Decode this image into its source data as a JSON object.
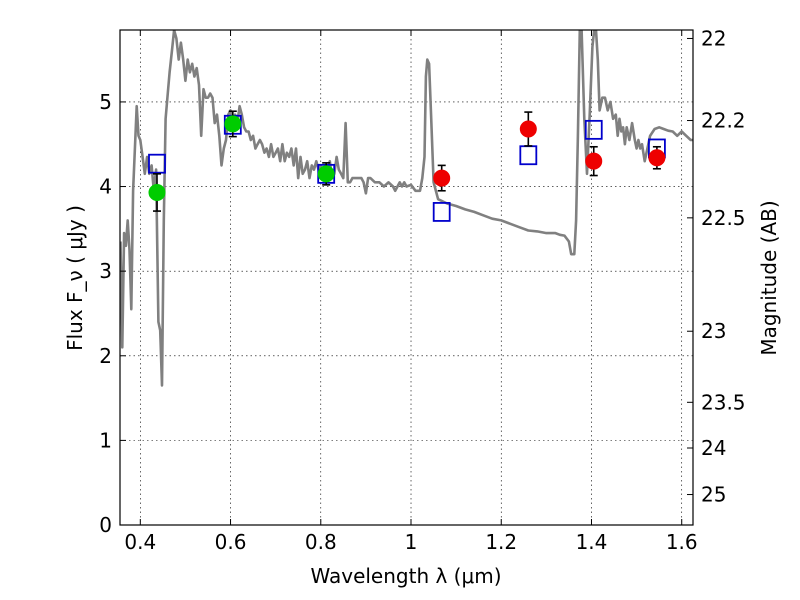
{
  "chart_data": {
    "type": "scatter",
    "xlabel": "Wavelength  λ (μm)",
    "ylabel": "Flux  F_ν  ( μJy )",
    "ylabel_right": "Magnitude (AB)",
    "xlim": [
      0.355,
      1.625
    ],
    "ylim": [
      0,
      5.85
    ],
    "grid": true,
    "x_ticks": [
      0.4,
      0.6,
      0.8,
      1.0,
      1.2,
      1.4,
      1.6
    ],
    "x_tick_labels": [
      "0.4",
      "0.6",
      "0.8",
      "1",
      "1.2",
      "1.4",
      "1.6"
    ],
    "y_ticks": [
      0,
      1,
      2,
      3,
      4,
      5
    ],
    "y_tick_labels": [
      "0",
      "1",
      "2",
      "3",
      "4",
      "5"
    ],
    "mag_ticks": [
      22,
      22.2,
      22.5,
      23,
      23.5,
      24,
      25
    ],
    "mag_tick_labels": [
      "22",
      "22.2",
      "22.5",
      "23",
      "23.5",
      "24",
      "25"
    ],
    "mag_tick_flux": [
      5.75,
      4.78,
      3.63,
      2.29,
      1.45,
      0.91,
      0.36
    ],
    "colors": {
      "template": "#808080",
      "model": "#0000cc",
      "green": "#00cc00",
      "red": "#ee0000"
    },
    "series": [
      {
        "style": "line",
        "points": [
          [
            0.356,
            3.35
          ],
          [
            0.36,
            2.1
          ],
          [
            0.364,
            3.45
          ],
          [
            0.368,
            3.3
          ],
          [
            0.372,
            3.6
          ],
          [
            0.376,
            3.25
          ],
          [
            0.38,
            2.55
          ],
          [
            0.384,
            3.95
          ],
          [
            0.388,
            4.45
          ],
          [
            0.392,
            4.95
          ],
          [
            0.396,
            4.6
          ],
          [
            0.4,
            4.55
          ],
          [
            0.405,
            4.35
          ],
          [
            0.41,
            4.15
          ],
          [
            0.415,
            4.35
          ],
          [
            0.42,
            4.15
          ],
          [
            0.425,
            4.25
          ],
          [
            0.43,
            3.95
          ],
          [
            0.435,
            4.2
          ],
          [
            0.44,
            2.4
          ],
          [
            0.444,
            2.3
          ],
          [
            0.448,
            1.65
          ],
          [
            0.452,
            3.6
          ],
          [
            0.456,
            4.8
          ],
          [
            0.46,
            5.05
          ],
          [
            0.465,
            5.35
          ],
          [
            0.47,
            5.6
          ],
          [
            0.475,
            5.85
          ],
          [
            0.48,
            5.75
          ],
          [
            0.485,
            5.5
          ],
          [
            0.49,
            5.7
          ],
          [
            0.495,
            5.5
          ],
          [
            0.5,
            5.25
          ],
          [
            0.505,
            5.5
          ],
          [
            0.51,
            5.35
          ],
          [
            0.515,
            5.45
          ],
          [
            0.52,
            5.3
          ],
          [
            0.525,
            5.4
          ],
          [
            0.53,
            5.2
          ],
          [
            0.535,
            4.6
          ],
          [
            0.54,
            5.15
          ],
          [
            0.545,
            5.05
          ],
          [
            0.55,
            5.05
          ],
          [
            0.555,
            5.1
          ],
          [
            0.56,
            5.05
          ],
          [
            0.565,
            4.75
          ],
          [
            0.57,
            4.85
          ],
          [
            0.575,
            4.6
          ],
          [
            0.58,
            4.25
          ],
          [
            0.585,
            4.45
          ],
          [
            0.59,
            4.55
          ],
          [
            0.595,
            4.85
          ],
          [
            0.6,
            4.9
          ],
          [
            0.605,
            4.75
          ],
          [
            0.61,
            4.85
          ],
          [
            0.615,
            4.75
          ],
          [
            0.62,
            4.95
          ],
          [
            0.625,
            4.85
          ],
          [
            0.63,
            4.7
          ],
          [
            0.635,
            4.65
          ],
          [
            0.64,
            4.65
          ],
          [
            0.645,
            4.55
          ],
          [
            0.65,
            4.6
          ],
          [
            0.655,
            4.45
          ],
          [
            0.66,
            4.5
          ],
          [
            0.665,
            4.55
          ],
          [
            0.67,
            4.5
          ],
          [
            0.675,
            4.4
          ],
          [
            0.68,
            4.45
          ],
          [
            0.685,
            4.35
          ],
          [
            0.69,
            4.5
          ],
          [
            0.695,
            4.35
          ],
          [
            0.7,
            4.4
          ],
          [
            0.705,
            4.45
          ],
          [
            0.71,
            4.3
          ],
          [
            0.715,
            4.5
          ],
          [
            0.72,
            4.3
          ],
          [
            0.725,
            4.4
          ],
          [
            0.73,
            4.35
          ],
          [
            0.735,
            4.45
          ],
          [
            0.74,
            4.25
          ],
          [
            0.745,
            4.45
          ],
          [
            0.75,
            4.1
          ],
          [
            0.755,
            4.35
          ],
          [
            0.76,
            4.15
          ],
          [
            0.765,
            4.2
          ],
          [
            0.77,
            4.3
          ],
          [
            0.775,
            4.1
          ],
          [
            0.78,
            4.25
          ],
          [
            0.785,
            4.2
          ],
          [
            0.79,
            4.3
          ],
          [
            0.795,
            4.2
          ],
          [
            0.8,
            4.25
          ],
          [
            0.805,
            4.15
          ],
          [
            0.81,
            4.25
          ],
          [
            0.815,
            4.2
          ],
          [
            0.82,
            4.3
          ],
          [
            0.825,
            4.1
          ],
          [
            0.83,
            4.15
          ],
          [
            0.835,
            4.35
          ],
          [
            0.84,
            4.2
          ],
          [
            0.845,
            4.15
          ],
          [
            0.85,
            4.1
          ],
          [
            0.855,
            4.75
          ],
          [
            0.86,
            4.05
          ],
          [
            0.865,
            4.05
          ],
          [
            0.87,
            4.1
          ],
          [
            0.88,
            4.1
          ],
          [
            0.89,
            4.1
          ],
          [
            0.895,
            4.05
          ],
          [
            0.9,
            3.92
          ],
          [
            0.905,
            4.1
          ],
          [
            0.91,
            4.1
          ],
          [
            0.92,
            4.05
          ],
          [
            0.93,
            4.05
          ],
          [
            0.94,
            4.0
          ],
          [
            0.95,
            4.05
          ],
          [
            0.96,
            4.0
          ],
          [
            0.965,
            3.95
          ],
          [
            0.97,
            4.0
          ],
          [
            0.975,
            4.05
          ],
          [
            0.98,
            4.0
          ],
          [
            0.985,
            4.05
          ],
          [
            0.99,
            4.0
          ],
          [
            1.0,
            4.02
          ],
          [
            1.01,
            3.95
          ],
          [
            1.02,
            3.95
          ],
          [
            1.025,
            4.1
          ],
          [
            1.03,
            4.35
          ],
          [
            1.033,
            5.3
          ],
          [
            1.036,
            5.5
          ],
          [
            1.04,
            5.45
          ],
          [
            1.044,
            4.9
          ],
          [
            1.05,
            4.05
          ],
          [
            1.06,
            3.85
          ],
          [
            1.08,
            3.8
          ],
          [
            1.1,
            3.77
          ],
          [
            1.12,
            3.73
          ],
          [
            1.14,
            3.7
          ],
          [
            1.16,
            3.66
          ],
          [
            1.18,
            3.62
          ],
          [
            1.2,
            3.6
          ],
          [
            1.22,
            3.56
          ],
          [
            1.24,
            3.52
          ],
          [
            1.26,
            3.48
          ],
          [
            1.28,
            3.47
          ],
          [
            1.3,
            3.45
          ],
          [
            1.32,
            3.45
          ],
          [
            1.33,
            3.43
          ],
          [
            1.34,
            3.42
          ],
          [
            1.35,
            3.35
          ],
          [
            1.355,
            3.2
          ],
          [
            1.362,
            3.2
          ],
          [
            1.366,
            3.6
          ],
          [
            1.37,
            4.6
          ],
          [
            1.374,
            5.85
          ],
          [
            1.378,
            5.85
          ],
          [
            1.384,
            4.8
          ],
          [
            1.39,
            4.15
          ],
          [
            1.396,
            4.85
          ],
          [
            1.402,
            5.65
          ],
          [
            1.406,
            5.85
          ],
          [
            1.41,
            5.85
          ],
          [
            1.414,
            5.5
          ],
          [
            1.418,
            4.9
          ],
          [
            1.424,
            5.05
          ],
          [
            1.43,
            5.05
          ],
          [
            1.436,
            4.9
          ],
          [
            1.442,
            5.0
          ],
          [
            1.448,
            4.8
          ],
          [
            1.454,
            4.85
          ],
          [
            1.458,
            4.6
          ],
          [
            1.462,
            4.8
          ],
          [
            1.466,
            4.65
          ],
          [
            1.47,
            4.7
          ],
          [
            1.474,
            4.5
          ],
          [
            1.478,
            4.7
          ],
          [
            1.484,
            4.55
          ],
          [
            1.49,
            4.75
          ],
          [
            1.496,
            4.55
          ],
          [
            1.5,
            4.45
          ],
          [
            1.504,
            4.55
          ],
          [
            1.508,
            4.45
          ],
          [
            1.512,
            4.5
          ],
          [
            1.518,
            4.3
          ],
          [
            1.524,
            4.45
          ],
          [
            1.53,
            4.6
          ],
          [
            1.54,
            4.68
          ],
          [
            1.55,
            4.7
          ],
          [
            1.56,
            4.68
          ],
          [
            1.57,
            4.66
          ],
          [
            1.58,
            4.65
          ],
          [
            1.59,
            4.6
          ],
          [
            1.6,
            4.65
          ],
          [
            1.61,
            4.6
          ],
          [
            1.62,
            4.55
          ],
          [
            1.625,
            4.55
          ]
        ]
      },
      {
        "style": "open-square",
        "points": [
          [
            0.437,
            4.27
          ],
          [
            0.605,
            4.73
          ],
          [
            0.812,
            4.15
          ],
          [
            1.068,
            3.7
          ],
          [
            1.26,
            4.37
          ],
          [
            1.405,
            4.67
          ],
          [
            1.545,
            4.45
          ]
        ]
      },
      {
        "style": "filled-circle",
        "color": "green",
        "points": [
          [
            0.437,
            3.93
          ],
          [
            0.605,
            4.74
          ],
          [
            0.812,
            4.15
          ]
        ],
        "errors": [
          0.22,
          0.15,
          0.13
        ]
      },
      {
        "style": "filled-circle",
        "color": "red",
        "points": [
          [
            1.068,
            4.1
          ],
          [
            1.26,
            4.68
          ],
          [
            1.405,
            4.3
          ],
          [
            1.545,
            4.34
          ]
        ],
        "errors": [
          0.15,
          0.2,
          0.17,
          0.13
        ]
      }
    ]
  }
}
